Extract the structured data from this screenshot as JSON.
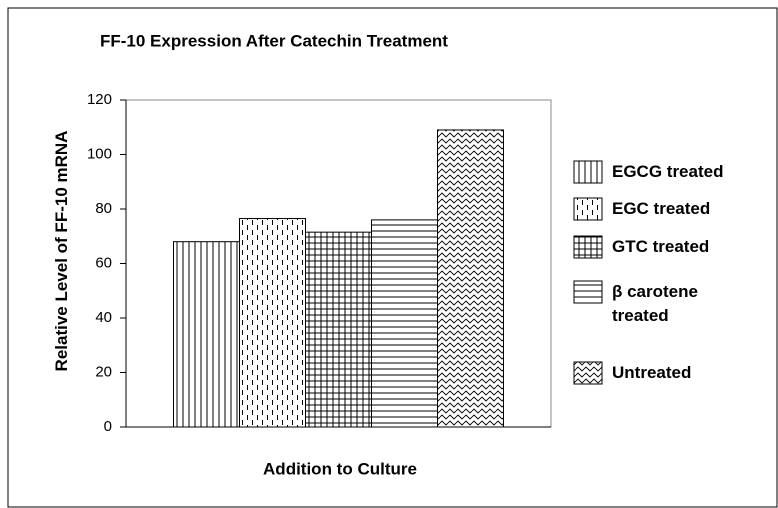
{
  "chart_data": {
    "type": "bar",
    "title": "FF-10 Expression After Catechin Treatment",
    "xlabel": "Addition to Culture",
    "ylabel": "Relative Level of FF-10 mRNA",
    "categories": [
      null
    ],
    "series": [
      {
        "name": "EGCG treated",
        "color": "#000000",
        "values": [
          68
        ]
      },
      {
        "name": "EGC treated",
        "color": "#000000",
        "values": [
          76.5
        ]
      },
      {
        "name": "GTC treated",
        "color": "#000000",
        "values": [
          71.5
        ]
      },
      {
        "name": "β carotene treated",
        "color": "#000000",
        "values": [
          76
        ]
      },
      {
        "name": "Untreated",
        "color": "#000000",
        "values": [
          109
        ]
      }
    ],
    "ylim": [
      0,
      120
    ],
    "yticks": [
      0,
      20,
      40,
      60,
      80,
      100,
      120
    ],
    "grid": false,
    "legend": "right"
  }
}
